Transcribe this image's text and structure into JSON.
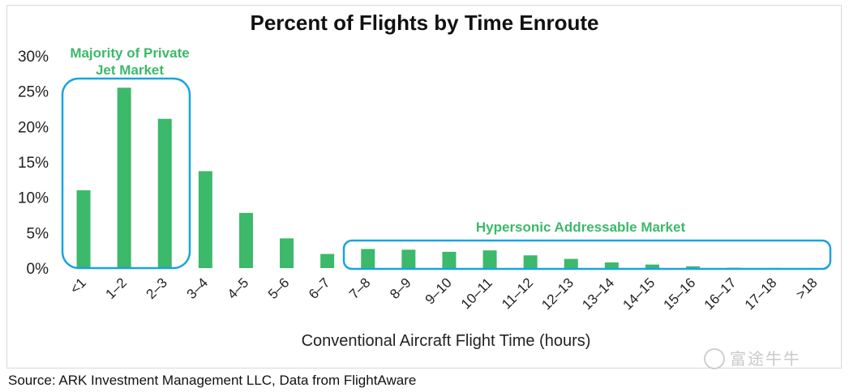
{
  "chart_data": {
    "type": "bar",
    "title": "Percent of Flights by Time Enroute",
    "xlabel": "Conventional Aircraft Flight Time (hours)",
    "ylabel": "",
    "categories": [
      "<1",
      "1–2",
      "2–3",
      "3–4",
      "4–5",
      "5–6",
      "6–7",
      "7–8",
      "8–9",
      "9–10",
      "10–11",
      "11–12",
      "12–13",
      "13–14",
      "14–15",
      "15–16",
      "16–17",
      "17–18",
      ">18"
    ],
    "values": [
      11.0,
      25.5,
      21.1,
      13.7,
      7.8,
      4.2,
      2.0,
      2.7,
      2.6,
      2.3,
      2.5,
      1.8,
      1.3,
      0.8,
      0.5,
      0.25,
      0.05,
      0.02,
      0.01
    ],
    "ylim": [
      0,
      30
    ],
    "yticks": [
      0,
      5,
      10,
      15,
      20,
      25,
      30
    ],
    "ytick_labels": [
      "0%",
      "5%",
      "10%",
      "15%",
      "20%",
      "25%",
      "30%"
    ],
    "bar_color": "#3cb96a",
    "grid": false,
    "annotations": [
      {
        "text": "Majority of Private Jet Market",
        "lines": [
          "Majority of Private",
          "Jet Market"
        ],
        "color": "#3cb96a",
        "box_color": "#1aa3e0",
        "range": [
          "<1",
          "2–3"
        ]
      },
      {
        "text": "Hypersonic Addressable Market",
        "color": "#3cb96a",
        "box_color": "#1aa3e0",
        "range": [
          "7–8",
          ">18"
        ]
      }
    ]
  },
  "source": "Source: ARK Investment Management LLC, Data from FlightAware",
  "watermark": "富途牛牛"
}
